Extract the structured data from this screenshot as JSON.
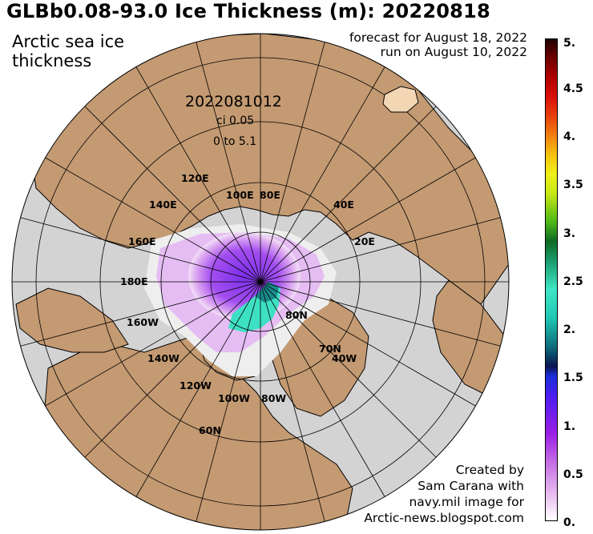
{
  "title": "GLBb0.08-93.0 Ice Thickness (m): 20220818",
  "subtitle_line1": "Arctic sea ice",
  "subtitle_line2": "thickness",
  "forecast_line1": "forecast for August 18, 2022",
  "forecast_line2": "run on August 10, 2022",
  "map": {
    "run_id": "2022081012",
    "contour_interval": "ci 0.05",
    "range": "0 to 5.1",
    "longitude_labels": [
      "120E",
      "100E",
      "80E",
      "140E",
      "40E",
      "160E",
      "20E",
      "180E",
      "80N",
      "160W",
      "70N",
      "140W",
      "40W",
      "120W",
      "100W",
      "80W",
      "60N"
    ],
    "colors": {
      "ocean": "#d3d3d3",
      "land": "#c49a72",
      "ice_low": "#e9c6f2",
      "ice_mid": "#8c2ef0",
      "ice_thick": "#3ee0c4"
    }
  },
  "credit": {
    "line1": "Created by",
    "line2": "Sam Carana with",
    "line3": "navy.mil image for",
    "line4": "Arctic-news.blogspot.com"
  },
  "colorbar": {
    "ticks": [
      "5.",
      "4.5",
      "4.",
      "3.5",
      "3.",
      "2.5",
      "2.",
      "1.5",
      "1.",
      "0.5",
      "0."
    ]
  }
}
